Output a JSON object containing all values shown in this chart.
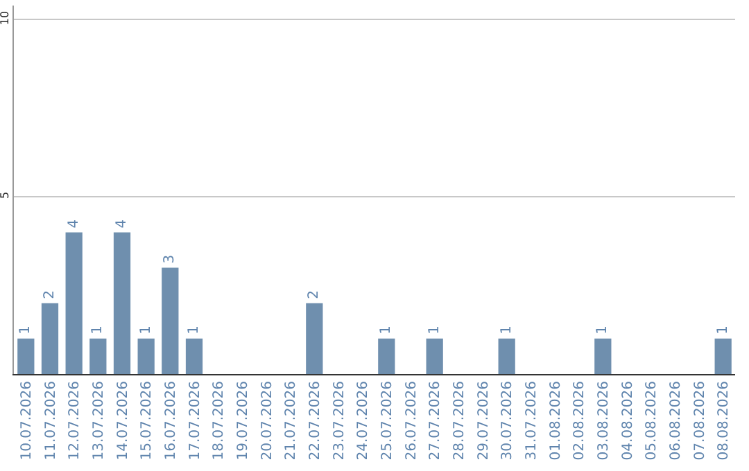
{
  "chart_data": {
    "type": "bar",
    "categories": [
      "10.07.2026",
      "11.07.2026",
      "12.07.2026",
      "13.07.2026",
      "14.07.2026",
      "15.07.2026",
      "16.07.2026",
      "17.07.2026",
      "18.07.2026",
      "19.07.2026",
      "20.07.2026",
      "21.07.2026",
      "22.07.2026",
      "23.07.2026",
      "24.07.2026",
      "25.07.2026",
      "26.07.2026",
      "27.07.2026",
      "28.07.2026",
      "29.07.2026",
      "30.07.2026",
      "31.07.2026",
      "01.08.2026",
      "02.08.2026",
      "03.08.2026",
      "04.08.2026",
      "05.08.2026",
      "06.08.2026",
      "07.08.2026",
      "08.08.2026"
    ],
    "values": [
      1,
      2,
      4,
      1,
      4,
      1,
      3,
      1,
      0,
      0,
      0,
      0,
      2,
      0,
      0,
      1,
      0,
      1,
      0,
      0,
      1,
      0,
      0,
      0,
      1,
      0,
      0,
      0,
      0,
      1
    ],
    "value_labels": [
      "1",
      "2",
      "4",
      "1",
      "4",
      "1",
      "3",
      "1",
      null,
      null,
      null,
      null,
      "2",
      null,
      null,
      "1",
      null,
      "1",
      null,
      null,
      "1",
      null,
      null,
      null,
      "1",
      null,
      null,
      null,
      null,
      "1"
    ],
    "color": "#6f8fae",
    "ylim": [
      0,
      10.4
    ],
    "yticks": [
      5,
      10
    ],
    "grid": "y"
  }
}
